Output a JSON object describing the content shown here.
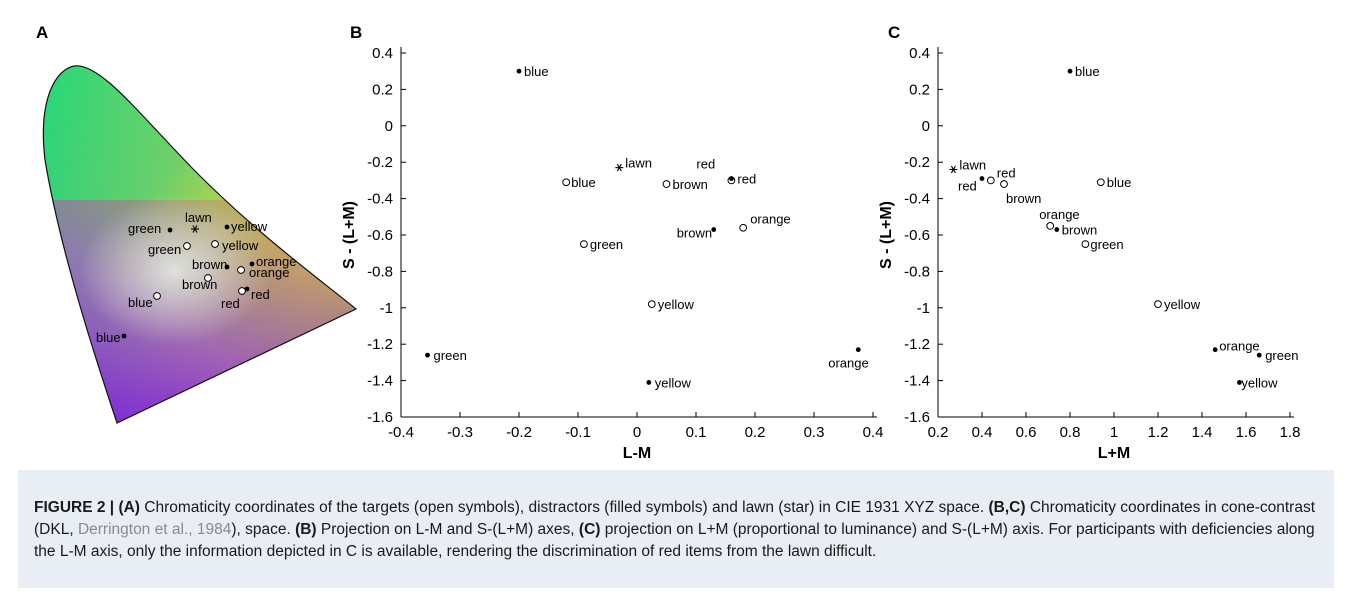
{
  "figure": {
    "panel_labels": {
      "a": "A",
      "b": "B",
      "c": "C"
    },
    "caption": {
      "figure_label": "FIGURE 2 | ",
      "s1_tag": "(A)",
      "s1_text": " Chromaticity coordinates of the targets (open symbols), distractors (filled symbols) and lawn (star) in CIE 1931 XYZ space. ",
      "s2_tag": "(B,C)",
      "s2_text_a": " Chromaticity coordinates in cone-contrast (DKL, ",
      "s2_cite": "Derrington et al., 1984",
      "s2_text_b": "), space. ",
      "s3_tag": "(B)",
      "s3_text": " Projection on L-M and S-(L+M) axes, ",
      "s4_tag": "(C)",
      "s4_text": " projection on L+M (proportional to luminance) and S-(L+M) axis. For participants with deficiencies along the L-M axis, only the information depicted in C is available, rendering the discrimination of red items from the lawn difficult."
    }
  },
  "chart_data": [
    {
      "panel": "A",
      "type": "scatter",
      "title": "",
      "xlabel": "",
      "ylabel": "",
      "background": "CIE 1931 chromaticity diagram",
      "points": [
        {
          "label": "lawn",
          "marker": "star"
        },
        {
          "label": "green",
          "marker": "filled"
        },
        {
          "label": "green",
          "marker": "open"
        },
        {
          "label": "yellow",
          "marker": "filled"
        },
        {
          "label": "yellow",
          "marker": "open"
        },
        {
          "label": "brown",
          "marker": "filled"
        },
        {
          "label": "brown",
          "marker": "open"
        },
        {
          "label": "orange",
          "marker": "filled"
        },
        {
          "label": "orange",
          "marker": "open"
        },
        {
          "label": "red",
          "marker": "filled"
        },
        {
          "label": "red",
          "marker": "open"
        },
        {
          "label": "blue",
          "marker": "open"
        },
        {
          "label": "blue",
          "marker": "filled"
        }
      ]
    },
    {
      "panel": "B",
      "type": "scatter",
      "xlabel": "L-M",
      "ylabel": "S - (L+M)",
      "xlim": [
        -0.4,
        0.4
      ],
      "ylim": [
        -1.6,
        0.4
      ],
      "xticks": [
        "-0.4",
        "-0.3",
        "-0.2",
        "-0.1",
        "0",
        "0.1",
        "0.2",
        "0.3",
        "0.4"
      ],
      "yticks": [
        "0.4",
        "0.2",
        "0",
        "-0.2",
        "-0.4",
        "-0.6",
        "-0.8",
        "-1",
        "-1.2",
        "-1.4",
        "-1.6"
      ],
      "points": [
        {
          "label": "blue",
          "marker": "filled",
          "x": -0.2,
          "y": 0.3
        },
        {
          "label": "lawn",
          "marker": "star",
          "x": -0.03,
          "y": -0.23
        },
        {
          "label": "blue",
          "marker": "open",
          "x": -0.12,
          "y": -0.31
        },
        {
          "label": "brown",
          "marker": "open",
          "x": 0.05,
          "y": -0.32
        },
        {
          "label": "red",
          "marker": "open",
          "x": 0.16,
          "y": -0.3
        },
        {
          "label": "red",
          "marker": "filled",
          "x": 0.16,
          "y": -0.29
        },
        {
          "label": "orange",
          "marker": "open",
          "x": 0.18,
          "y": -0.56
        },
        {
          "label": "brown",
          "marker": "filled",
          "x": 0.13,
          "y": -0.57
        },
        {
          "label": "green",
          "marker": "open",
          "x": -0.09,
          "y": -0.65
        },
        {
          "label": "yellow",
          "marker": "open",
          "x": 0.025,
          "y": -0.98
        },
        {
          "label": "green",
          "marker": "filled",
          "x": -0.355,
          "y": -1.26
        },
        {
          "label": "orange",
          "marker": "filled",
          "x": 0.375,
          "y": -1.23
        },
        {
          "label": "yellow",
          "marker": "filled",
          "x": 0.02,
          "y": -1.41
        }
      ]
    },
    {
      "panel": "C",
      "type": "scatter",
      "xlabel": "L+M",
      "ylabel": "S - (L+M)",
      "xlim": [
        0.2,
        1.8
      ],
      "ylim": [
        -1.6,
        0.4
      ],
      "xticks": [
        "0.2",
        "0.4",
        "0.6",
        "0.8",
        "1",
        "1.2",
        "1.4",
        "1.6",
        "1.8"
      ],
      "yticks": [
        "0.4",
        "0.2",
        "0",
        "-0.2",
        "-0.4",
        "-0.6",
        "-0.8",
        "-1",
        "-1.2",
        "-1.4",
        "-1.6"
      ],
      "points": [
        {
          "label": "blue",
          "marker": "filled",
          "x": 0.8,
          "y": 0.3
        },
        {
          "label": "lawn",
          "marker": "star",
          "x": 0.27,
          "y": -0.24
        },
        {
          "label": "red",
          "marker": "filled",
          "x": 0.4,
          "y": -0.29
        },
        {
          "label": "red",
          "marker": "open",
          "x": 0.44,
          "y": -0.3
        },
        {
          "label": "brown",
          "marker": "open",
          "x": 0.5,
          "y": -0.32
        },
        {
          "label": "blue",
          "marker": "open",
          "x": 0.94,
          "y": -0.31
        },
        {
          "label": "orange",
          "marker": "open",
          "x": 0.71,
          "y": -0.55
        },
        {
          "label": "brown",
          "marker": "filled",
          "x": 0.74,
          "y": -0.57
        },
        {
          "label": "green",
          "marker": "open",
          "x": 0.87,
          "y": -0.65
        },
        {
          "label": "yellow",
          "marker": "open",
          "x": 1.2,
          "y": -0.98
        },
        {
          "label": "orange",
          "marker": "filled",
          "x": 1.46,
          "y": -1.23
        },
        {
          "label": "green",
          "marker": "filled",
          "x": 1.66,
          "y": -1.26
        },
        {
          "label": "yellow",
          "marker": "filled",
          "x": 1.57,
          "y": -1.41
        }
      ]
    }
  ]
}
